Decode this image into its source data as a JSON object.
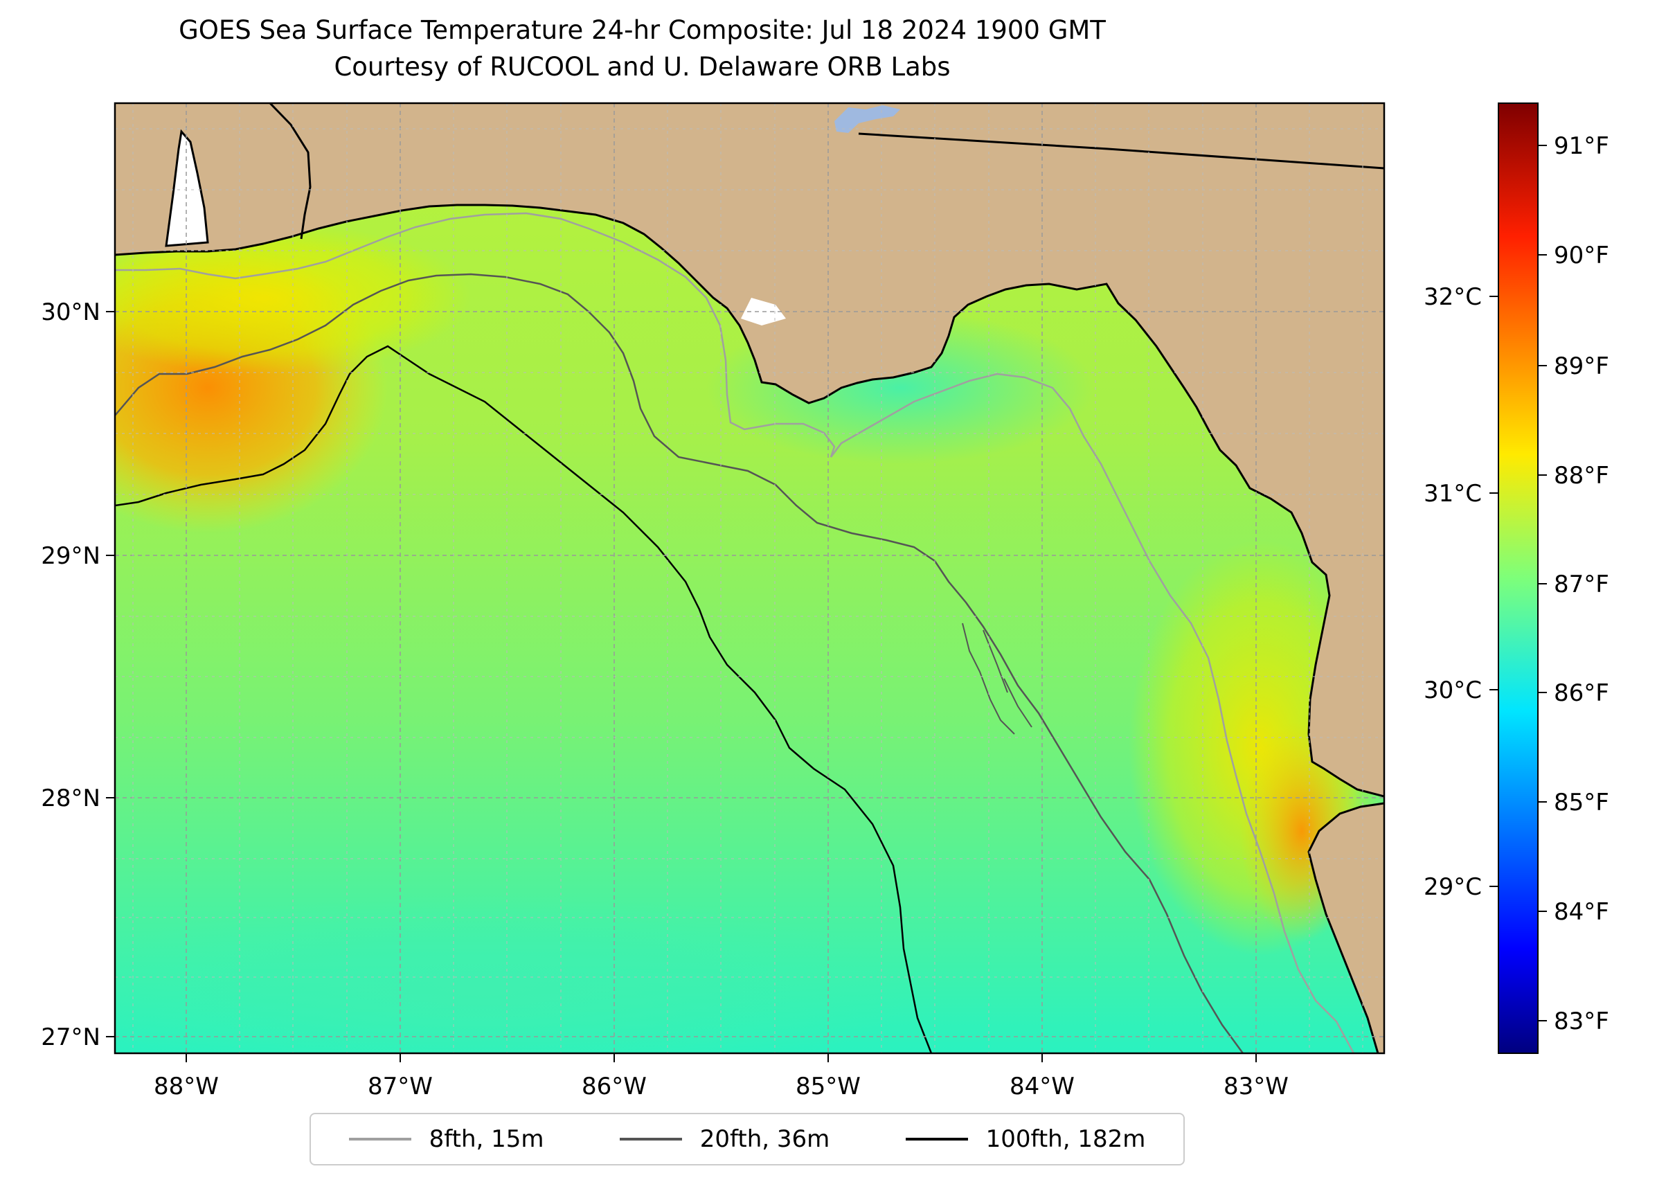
{
  "title": "GOES Sea Surface Temperature 24-hr Composite: Jul 18 2024 1900 GMT",
  "subtitle": "Courtesy of RUCOOL and U. Delaware ORB Labs",
  "map": {
    "longitude_labels": [
      "88°W",
      "87°W",
      "86°W",
      "85°W",
      "84°W",
      "83°W"
    ],
    "latitude_labels": [
      "30°N",
      "29°N",
      "28°N",
      "27°N"
    ],
    "land_color": "#d2b48c",
    "lake_color": "#9fb9e0",
    "coastline_color": "#000000"
  },
  "colorbar": {
    "fahrenheit_labels": [
      "91°F",
      "90°F",
      "89°F",
      "88°F",
      "87°F",
      "86°F",
      "85°F",
      "84°F",
      "83°F"
    ],
    "celsius_labels": [
      "32°C",
      "31°C",
      "30°C",
      "29°C"
    ],
    "colormap": "jet"
  },
  "legend": {
    "items": [
      {
        "label": "8fth, 15m",
        "color": "#a0a0a0"
      },
      {
        "label": "20fth, 36m",
        "color": "#555555"
      },
      {
        "label": "100fth, 182m",
        "color": "#000000"
      }
    ]
  }
}
